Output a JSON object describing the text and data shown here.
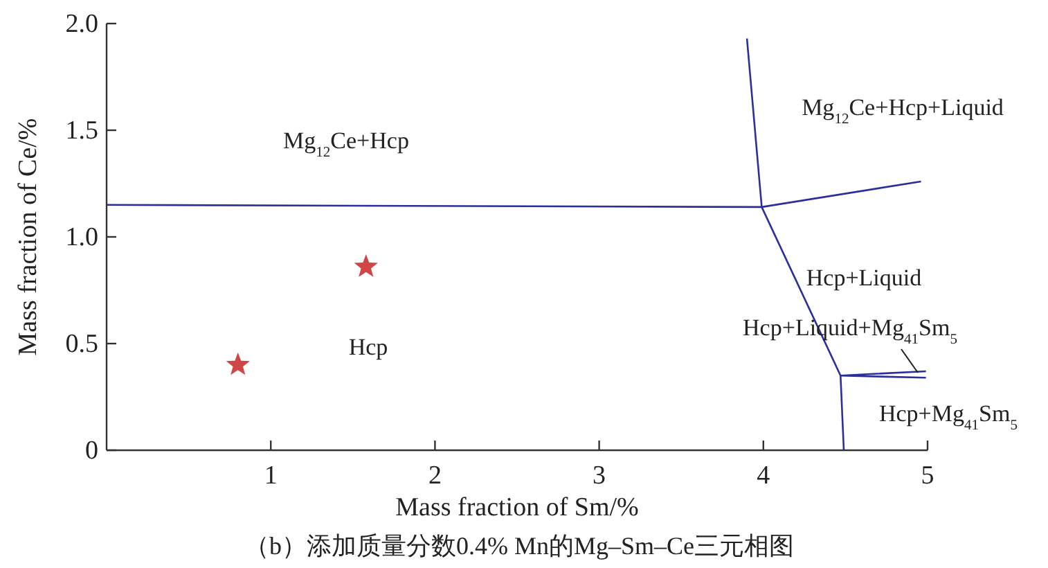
{
  "chart_data": {
    "type": "line",
    "title": "（b）添加质量分数0.4% Mn的Mg–Sm–Ce三元相图",
    "xlabel": "Mass fraction of Sm/%",
    "ylabel": "Mass fraction of Ce/%",
    "xlim": [
      0,
      5
    ],
    "xticks": [
      1,
      2,
      3,
      4,
      5
    ],
    "ylim": [
      0,
      2
    ],
    "yticks": [
      0,
      {
        "value": 0.5,
        "label": "0.5"
      },
      {
        "value": 1,
        "label": "1.0"
      },
      {
        "value": 1.5,
        "label": "1.5"
      },
      {
        "value": 2,
        "label": "2.0"
      }
    ],
    "grid": false,
    "marker": "none",
    "line_style": "solid",
    "series": [
      {
        "color": "#2b2f9a",
        "x": [
          0,
          3.99,
          4.96
        ],
        "values": [
          1.15,
          1.14,
          1.26
        ]
      },
      {
        "color": "#2b2f9a",
        "x": [
          3.9,
          3.99,
          4.47,
          4.49
        ],
        "values": [
          1.93,
          1.14,
          0.35,
          0
        ]
      },
      {
        "color": "#2b2f9a",
        "x": [
          4.99,
          4.47,
          4.99
        ],
        "values": [
          0.37,
          0.35,
          0.34
        ]
      },
      {
        "type": "scatter",
        "marker": "star",
        "color": "#d04545",
        "x": [
          0.8,
          1.58
        ],
        "values": [
          0.4,
          0.86
        ]
      }
    ],
    "annotations": [
      "Mg$_{12}$Ce+Hcp",
      "Mg$_{12}$Ce+Hcp+Liquid",
      "Hcp+Liquid",
      "Hcp+Liquid+Mg$_{41}$Sm$_{5}$",
      "Hcp",
      "Hcp+Mg$_{41}$Sm$_{5}$"
    ]
  }
}
